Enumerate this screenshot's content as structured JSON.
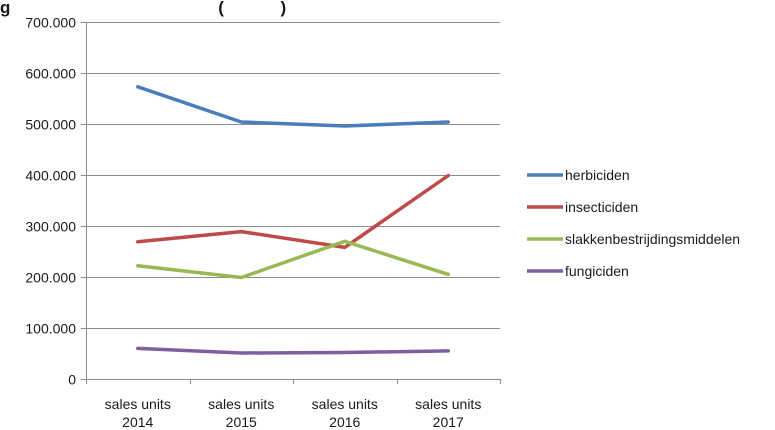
{
  "chart_data": {
    "type": "line",
    "title": "g                                            (            )",
    "categories": [
      [
        "sales units",
        "2014"
      ],
      [
        "sales units",
        "2015"
      ],
      [
        "sales units",
        "2016"
      ],
      [
        "sales units",
        "2017"
      ]
    ],
    "ylim": [
      0,
      700000
    ],
    "yticks": [
      0,
      100000,
      200000,
      300000,
      400000,
      500000,
      600000,
      700000
    ],
    "ytick_labels": [
      "0",
      "100.000",
      "200.000",
      "300.000",
      "400.000",
      "500.000",
      "600.000",
      "700.000"
    ],
    "grid": "horizontal",
    "legend_position": "right",
    "series": [
      {
        "name": "herbiciden",
        "color": "#4a7ebb",
        "values": [
          573000,
          504000,
          496000,
          504000
        ]
      },
      {
        "name": "insecticiden",
        "color": "#be4b48",
        "values": [
          269000,
          289000,
          258000,
          399000
        ]
      },
      {
        "name": "slakkenbestrijdingsmiddelen",
        "color": "#98b954",
        "values": [
          222000,
          199000,
          270000,
          205000
        ]
      },
      {
        "name": "fungiciden",
        "color": "#7d60a0",
        "values": [
          60000,
          51000,
          52000,
          55000
        ]
      }
    ]
  }
}
